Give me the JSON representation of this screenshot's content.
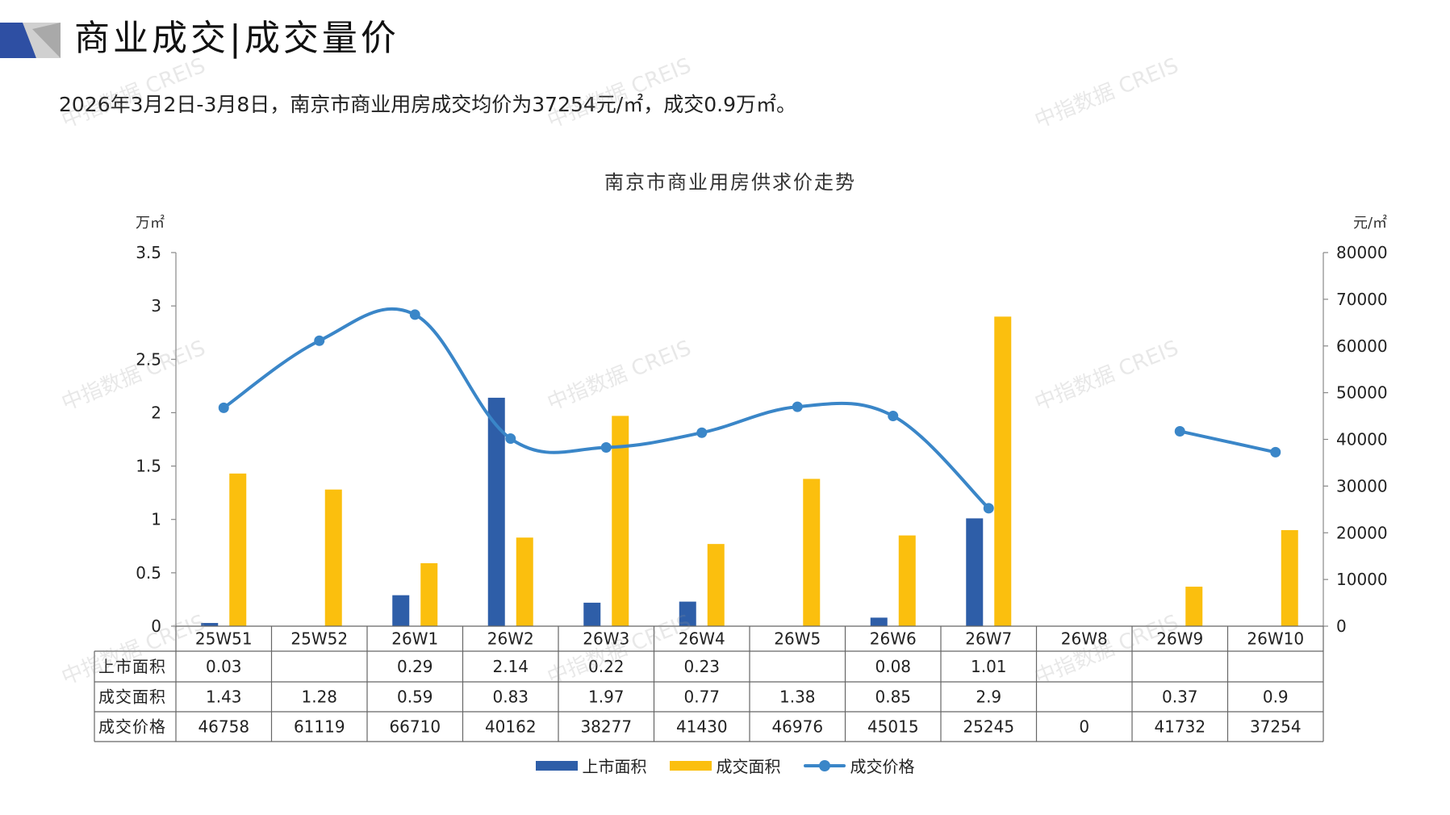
{
  "header": {
    "title": "商业成交|成交量价",
    "summary": "2026年3月2日-3月8日，南京市商业用房成交均价为37254元/㎡，成交0.9万㎡。"
  },
  "watermark_text": "中指数据 CREIS",
  "colors": {
    "listed": "#2e5ea8",
    "traded": "#fbbf0e",
    "price": "#3a86c8",
    "deco_blue": "#2e4fa3",
    "deco_gray": "#c9c9c9"
  },
  "chart_data": {
    "type": "bar",
    "title": "南京市商业用房供求价走势",
    "y_left_unit": "万㎡",
    "y_right_unit": "元/㎡",
    "ylim_left": [
      0,
      3.5
    ],
    "ylim_right": [
      0,
      80000
    ],
    "yticks_left": [
      "0",
      "0.5",
      "1",
      "1.5",
      "2",
      "2.5",
      "3",
      "3.5"
    ],
    "yticks_right": [
      "0",
      "10000",
      "20000",
      "30000",
      "40000",
      "50000",
      "60000",
      "70000",
      "80000"
    ],
    "categories": [
      "25W51",
      "25W52",
      "26W1",
      "26W2",
      "26W3",
      "26W4",
      "26W5",
      "26W6",
      "26W7",
      "26W8",
      "26W9",
      "26W10"
    ],
    "series": [
      {
        "name": "上市面积",
        "type": "bar",
        "axis": "left",
        "values": [
          0.03,
          null,
          0.29,
          2.14,
          0.22,
          0.23,
          null,
          0.08,
          1.01,
          null,
          null,
          null
        ],
        "labels": [
          "0.03",
          "",
          "0.29",
          "2.14",
          "0.22",
          "0.23",
          "",
          "0.08",
          "1.01",
          "",
          "",
          ""
        ]
      },
      {
        "name": "成交面积",
        "type": "bar",
        "axis": "left",
        "values": [
          1.43,
          1.28,
          0.59,
          0.83,
          1.97,
          0.77,
          1.38,
          0.85,
          2.9,
          null,
          0.37,
          0.9
        ],
        "labels": [
          "1.43",
          "1.28",
          "0.59",
          "0.83",
          "1.97",
          "0.77",
          "1.38",
          "0.85",
          "2.9",
          "",
          "0.37",
          "0.9"
        ]
      },
      {
        "name": "成交价格",
        "type": "line",
        "axis": "right",
        "values": [
          46758,
          61119,
          66710,
          40162,
          38277,
          41430,
          46976,
          45015,
          25245,
          0,
          41732,
          37254
        ],
        "labels": [
          "46758",
          "61119",
          "66710",
          "40162",
          "38277",
          "41430",
          "46976",
          "45015",
          "25245",
          "0",
          "41732",
          "37254"
        ]
      }
    ],
    "legend_position": "bottom",
    "grid": false
  }
}
